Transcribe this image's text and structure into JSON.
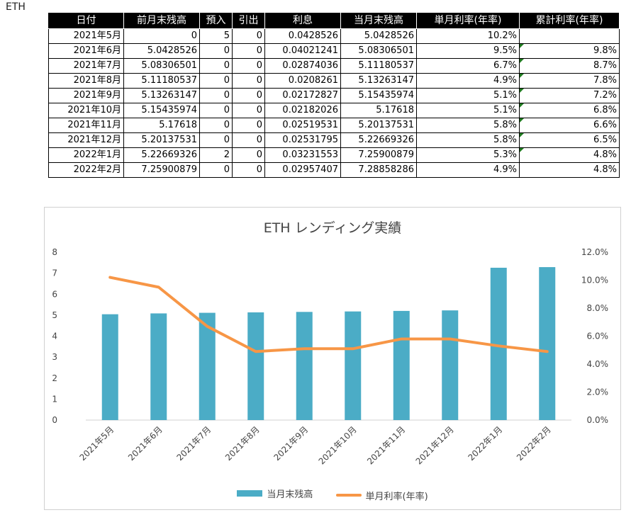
{
  "sheet_label": "ETH",
  "table": {
    "headers": [
      "日付",
      "前月末残高",
      "預入",
      "引出",
      "利息",
      "当月末残高",
      "単月利率(年率)",
      "累計利率(年率)"
    ],
    "rows": [
      {
        "date": "2021年5月",
        "prev": "0",
        "dep": "5",
        "wd": "0",
        "interest": "0.0428526",
        "end": "5.0428526",
        "monthly": "10.2%",
        "cumulative": "",
        "flag": false
      },
      {
        "date": "2021年6月",
        "prev": "5.0428526",
        "dep": "0",
        "wd": "0",
        "interest": "0.04021241",
        "end": "5.08306501",
        "monthly": "9.5%",
        "cumulative": "9.8%",
        "flag": true
      },
      {
        "date": "2021年7月",
        "prev": "5.08306501",
        "dep": "0",
        "wd": "0",
        "interest": "0.02874036",
        "end": "5.11180537",
        "monthly": "6.7%",
        "cumulative": "8.7%",
        "flag": true
      },
      {
        "date": "2021年8月",
        "prev": "5.11180537",
        "dep": "0",
        "wd": "0",
        "interest": "0.0208261",
        "end": "5.13263147",
        "monthly": "4.9%",
        "cumulative": "7.8%",
        "flag": true
      },
      {
        "date": "2021年9月",
        "prev": "5.13263147",
        "dep": "0",
        "wd": "0",
        "interest": "0.02172827",
        "end": "5.15435974",
        "monthly": "5.1%",
        "cumulative": "7.2%",
        "flag": true
      },
      {
        "date": "2021年10月",
        "prev": "5.15435974",
        "dep": "0",
        "wd": "0",
        "interest": "0.02182026",
        "end": "5.17618",
        "monthly": "5.1%",
        "cumulative": "6.8%",
        "flag": true
      },
      {
        "date": "2021年11月",
        "prev": "5.17618",
        "dep": "0",
        "wd": "0",
        "interest": "0.02519531",
        "end": "5.20137531",
        "monthly": "5.8%",
        "cumulative": "6.6%",
        "flag": true
      },
      {
        "date": "2021年12月",
        "prev": "5.20137531",
        "dep": "0",
        "wd": "0",
        "interest": "0.02531795",
        "end": "5.22669326",
        "monthly": "5.8%",
        "cumulative": "6.5%",
        "flag": true
      },
      {
        "date": "2022年1月",
        "prev": "5.22669326",
        "dep": "2",
        "wd": "0",
        "interest": "0.03231553",
        "end": "7.25900879",
        "monthly": "5.3%",
        "cumulative": "4.8%",
        "flag": true
      },
      {
        "date": "2022年2月",
        "prev": "7.25900879",
        "dep": "0",
        "wd": "0",
        "interest": "0.02957407",
        "end": "7.28858286",
        "monthly": "4.9%",
        "cumulative": "4.8%",
        "flag": false
      }
    ]
  },
  "chart_data": {
    "type": "bar",
    "title": "ETH レンディング実績",
    "categories": [
      "2021年5月",
      "2021年6月",
      "2021年7月",
      "2021年8月",
      "2021年9月",
      "2021年10月",
      "2021年11月",
      "2021年12月",
      "2022年1月",
      "2022年2月"
    ],
    "series": [
      {
        "name": "当月末残高",
        "type": "bar",
        "axis": "left",
        "color": "#4bacc6",
        "values": [
          5.0428526,
          5.08306501,
          5.11180537,
          5.13263147,
          5.15435974,
          5.17618,
          5.20137531,
          5.22669326,
          7.25900879,
          7.28858286
        ]
      },
      {
        "name": "単月利率(年率)",
        "type": "line",
        "axis": "right",
        "color": "#f79646",
        "values": [
          10.2,
          9.5,
          6.7,
          4.9,
          5.1,
          5.1,
          5.8,
          5.8,
          5.3,
          4.9
        ]
      }
    ],
    "ylim_left": [
      0,
      8
    ],
    "yticks_left": [
      "0",
      "1",
      "2",
      "3",
      "4",
      "5",
      "6",
      "7",
      "8"
    ],
    "ylim_right": [
      0,
      12
    ],
    "yticks_right": [
      "0.0%",
      "2.0%",
      "4.0%",
      "6.0%",
      "8.0%",
      "10.0%",
      "12.0%"
    ],
    "grid": false,
    "legend_position": "bottom"
  }
}
